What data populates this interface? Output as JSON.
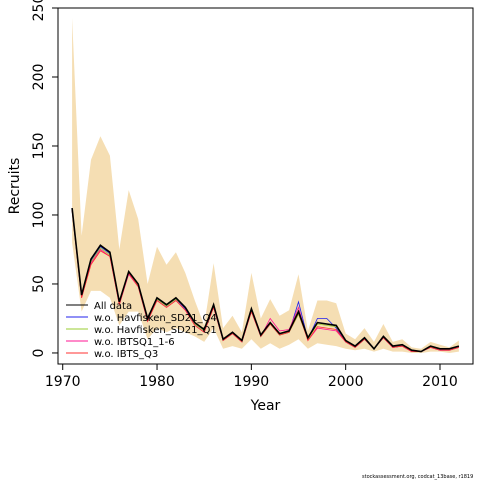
{
  "chart_data": {
    "type": "line",
    "title": "",
    "xlabel": "Year",
    "ylabel": "Recruits",
    "xlim": [
      1969.5,
      2013.5
    ],
    "ylim": [
      -8,
      250
    ],
    "x_ticks": [
      1970,
      1980,
      1990,
      2000,
      2010
    ],
    "y_ticks": [
      0,
      50,
      100,
      150,
      200,
      250
    ],
    "grid": false,
    "legend_position": "bottom-left",
    "x": [
      1971,
      1972,
      1973,
      1974,
      1975,
      1976,
      1977,
      1978,
      1979,
      1980,
      1981,
      1982,
      1983,
      1984,
      1985,
      1986,
      1987,
      1988,
      1989,
      1990,
      1991,
      1992,
      1993,
      1994,
      1995,
      1996,
      1997,
      1998,
      1999,
      2000,
      2001,
      2002,
      2003,
      2004,
      2005,
      2006,
      2007,
      2008,
      2009,
      2010,
      2011,
      2012
    ],
    "band": {
      "color": "#f5deb3",
      "lower": [
        80,
        30,
        45,
        45,
        40,
        20,
        30,
        30,
        10,
        18,
        15,
        18,
        15,
        12,
        8,
        18,
        3,
        5,
        3,
        10,
        3,
        7,
        3,
        6,
        10,
        3,
        7,
        6,
        5,
        3,
        2,
        3,
        1,
        3,
        1,
        1,
        0,
        0,
        1,
        1,
        0,
        1
      ],
      "upper": [
        243,
        85,
        140,
        157,
        143,
        75,
        118,
        97,
        50,
        77,
        64,
        73,
        58,
        38,
        20,
        65,
        18,
        27,
        15,
        58,
        25,
        39,
        27,
        31,
        57,
        16,
        38,
        38,
        36,
        14,
        10,
        18,
        8,
        21,
        8,
        10,
        4,
        3,
        8,
        6,
        4,
        9
      ]
    },
    "series": [
      {
        "name": "All data",
        "color": "#000000",
        "values": [
          105,
          42,
          68,
          78,
          73,
          37,
          59,
          50,
          25,
          40,
          35,
          40,
          33,
          22,
          17,
          35,
          10,
          15,
          9,
          32,
          13,
          22,
          14,
          16,
          30,
          11,
          22,
          21,
          20,
          9,
          5,
          11,
          3,
          12,
          5,
          6,
          2,
          1,
          5,
          3,
          3,
          5
        ]
      },
      {
        "name": "w.o. Havfisken_SD21_Q4",
        "color": "#2020ee",
        "values": [
          104,
          41,
          67,
          77,
          72,
          36,
          58,
          49,
          24,
          39,
          34,
          39,
          32,
          21,
          16,
          35,
          9,
          14,
          8,
          31,
          12,
          21,
          13,
          15,
          37,
          10,
          25,
          25,
          18,
          8,
          4,
          10,
          3,
          11,
          4,
          5,
          1,
          1,
          4,
          2,
          2,
          4
        ]
      },
      {
        "name": "w.o. Havfisken_SD21_Q1",
        "color": "#9acd32",
        "values": [
          103,
          41,
          66,
          76,
          71,
          36,
          58,
          49,
          24,
          39,
          34,
          39,
          33,
          21,
          16,
          34,
          9,
          14,
          8,
          31,
          12,
          21,
          13,
          15,
          28,
          10,
          21,
          20,
          19,
          9,
          4,
          10,
          3,
          11,
          5,
          5,
          2,
          1,
          4,
          3,
          2,
          5
        ]
      },
      {
        "name": "w.o. IBTSQ1_1-6",
        "color": "#ff1493",
        "values": [
          103,
          40,
          65,
          75,
          70,
          35,
          57,
          48,
          23,
          38,
          33,
          38,
          31,
          20,
          15,
          33,
          9,
          14,
          8,
          30,
          12,
          25,
          16,
          17,
          33,
          9,
          18,
          17,
          16,
          8,
          4,
          10,
          3,
          11,
          4,
          5,
          1,
          1,
          4,
          2,
          2,
          4
        ]
      },
      {
        "name": "w.o. IBTS_Q3",
        "color": "#ff3030",
        "values": [
          104,
          40,
          64,
          74,
          70,
          35,
          58,
          48,
          23,
          38,
          33,
          38,
          31,
          20,
          15,
          33,
          9,
          14,
          8,
          30,
          12,
          21,
          13,
          15,
          29,
          9,
          19,
          18,
          17,
          8,
          4,
          10,
          3,
          11,
          4,
          5,
          1,
          1,
          4,
          2,
          2,
          4
        ]
      }
    ]
  },
  "footer": "stockassessment.org, codcat_13base, r1819"
}
